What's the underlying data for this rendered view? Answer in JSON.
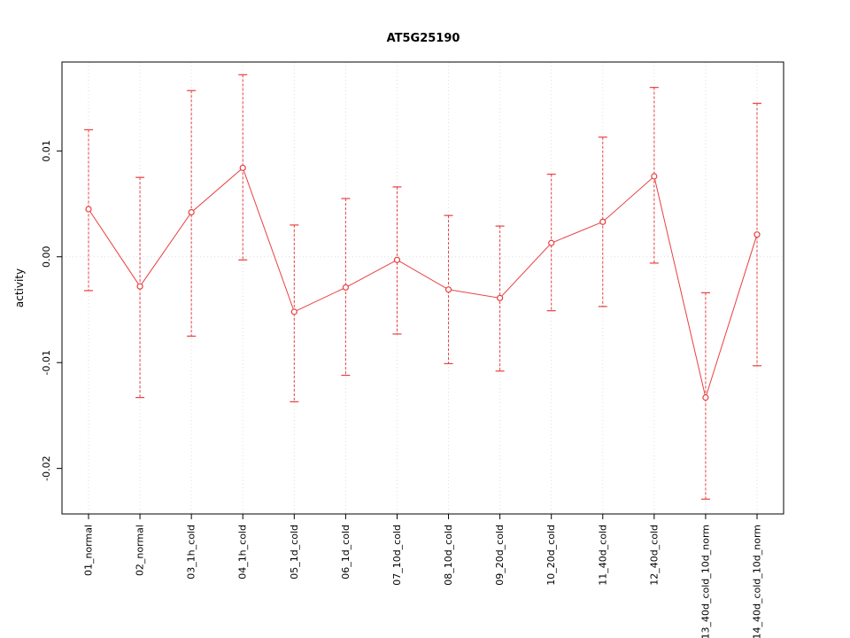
{
  "chart_data": {
    "type": "line",
    "subtype": "points-with-error-bars",
    "title": "AT5G25190",
    "ylabel": "activity",
    "xlabel": "",
    "categories": [
      "01_normal",
      "02_normal",
      "03_1h_cold",
      "04_1h_cold",
      "05_1d_cold",
      "06_1d_cold",
      "07_10d_cold",
      "08_10d_cold",
      "09_20d_cold",
      "10_20d_cold",
      "11_40d_cold",
      "12_40d_cold",
      "13_40d_cold_10d_norm",
      "14_40d_cold_10d_norm"
    ],
    "series": [
      {
        "name": "activity",
        "means": [
          0.0045,
          -0.0028,
          0.0042,
          0.0084,
          -0.0052,
          -0.0029,
          -0.0003,
          -0.0031,
          -0.0039,
          0.0013,
          0.0033,
          0.0076,
          -0.0133,
          0.0021
        ],
        "lower": [
          -0.0032,
          -0.0133,
          -0.0075,
          -0.0003,
          -0.0137,
          -0.0112,
          -0.0073,
          -0.0101,
          -0.0108,
          -0.0051,
          -0.0047,
          -0.0006,
          -0.0229,
          -0.0103
        ],
        "upper": [
          0.012,
          0.0075,
          0.0157,
          0.0172,
          0.003,
          0.0055,
          0.0066,
          0.0039,
          0.0029,
          0.0078,
          0.0113,
          0.016,
          -0.0034,
          0.0145
        ]
      }
    ],
    "ylim": [
      -0.0243,
      0.0184
    ],
    "yticks": [
      {
        "value": -0.02,
        "label": "-0.02"
      },
      {
        "value": -0.01,
        "label": "-0.01"
      },
      {
        "value": 0.0,
        "label": "0.00"
      },
      {
        "value": 0.01,
        "label": "0.01"
      }
    ],
    "grid": true,
    "zero_line": true,
    "legend": "none",
    "colors": {
      "series": "#e84040",
      "grid": "#dedede",
      "axis": "#000000",
      "background": "#ffffff"
    }
  }
}
